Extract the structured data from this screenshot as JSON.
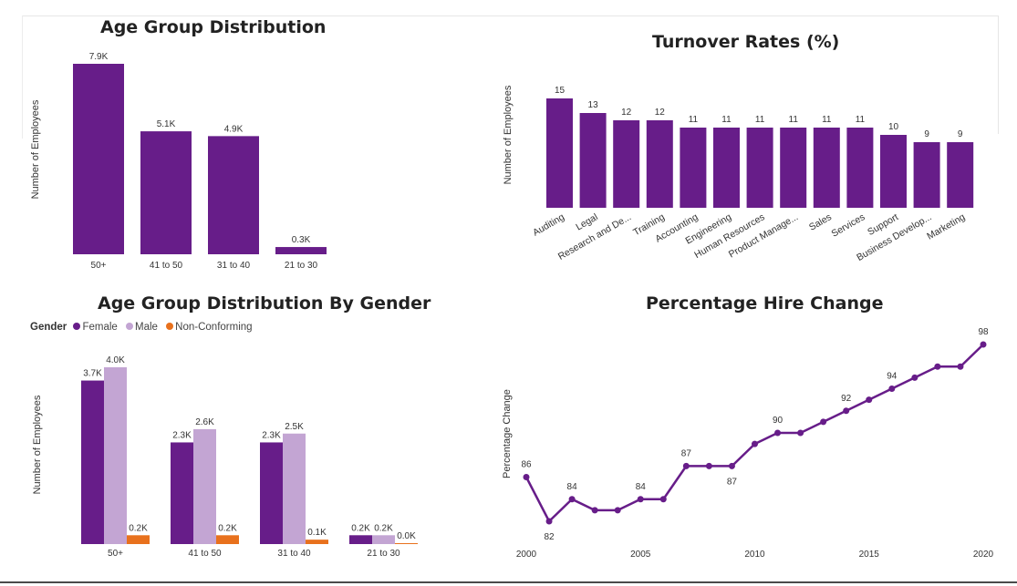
{
  "colors": {
    "primary": "#671d89",
    "female": "#671d89",
    "male": "#c3a5d3",
    "nonconforming": "#e8711d",
    "text": "#333333"
  },
  "chart_data": [
    {
      "id": "age",
      "type": "bar",
      "title": "Age Group Distribution",
      "ylabel": "Number of Employees",
      "categories": [
        "50+",
        "41 to 50",
        "31 to 40",
        "21 to 30"
      ],
      "values": [
        7.9,
        5.1,
        4.9,
        0.3
      ],
      "labels": [
        "7.9K",
        "5.1K",
        "4.9K",
        "0.3K"
      ],
      "ylim": [
        0,
        7.9
      ],
      "unit": "thousands"
    },
    {
      "id": "turnover",
      "type": "bar",
      "title": "Turnover Rates (%)",
      "ylabel": "Number of Employees",
      "categories": [
        "Auditing",
        "Legal",
        "Research and De...",
        "Training",
        "Accounting",
        "Engineering",
        "Human Resources",
        "Product Manage...",
        "Sales",
        "Services",
        "Support",
        "Business Develop...",
        "Marketing"
      ],
      "values": [
        15,
        13,
        12,
        12,
        11,
        11,
        11,
        11,
        11,
        11,
        10,
        9,
        9
      ],
      "labels": [
        "15",
        "13",
        "12",
        "12",
        "11",
        "11",
        "11",
        "11",
        "11",
        "11",
        "10",
        "9",
        "9"
      ],
      "ylim": [
        0,
        15
      ]
    },
    {
      "id": "gender",
      "type": "bar",
      "title": "Age Group Distribution By Gender",
      "ylabel": "Number of Employees",
      "legend_title": "Gender",
      "categories": [
        "50+",
        "41 to 50",
        "31 to 40",
        "21 to 30"
      ],
      "series": [
        {
          "name": "Female",
          "values": [
            3.7,
            2.3,
            2.3,
            0.2
          ],
          "labels": [
            "3.7K",
            "2.3K",
            "2.3K",
            "0.2K"
          ]
        },
        {
          "name": "Male",
          "values": [
            4.0,
            2.6,
            2.5,
            0.2
          ],
          "labels": [
            "4.0K",
            "2.6K",
            "2.5K",
            "0.2K"
          ]
        },
        {
          "name": "Non-Conforming",
          "values": [
            0.2,
            0.2,
            0.1,
            0.0
          ],
          "labels": [
            "0.2K",
            "0.2K",
            "0.1K",
            "0.0K"
          ]
        }
      ],
      "ylim": [
        0,
        4.0
      ],
      "unit": "thousands"
    },
    {
      "id": "hire",
      "type": "line",
      "title": "Percentage Hire Change",
      "ylabel": "Percentage Change",
      "x": [
        2000,
        2001,
        2002,
        2003,
        2004,
        2005,
        2006,
        2007,
        2008,
        2009,
        2010,
        2011,
        2012,
        2013,
        2014,
        2015,
        2016,
        2017,
        2018,
        2019,
        2020
      ],
      "values": [
        86,
        82,
        84,
        83,
        83,
        84,
        84,
        87,
        87,
        87,
        89,
        90,
        90,
        91,
        92,
        93,
        94,
        95,
        96,
        96,
        98
      ],
      "point_labels": [
        {
          "index": 0,
          "text": "86",
          "pos": "above"
        },
        {
          "index": 1,
          "text": "82",
          "pos": "below"
        },
        {
          "index": 2,
          "text": "84",
          "pos": "above"
        },
        {
          "index": 5,
          "text": "84",
          "pos": "above"
        },
        {
          "index": 7,
          "text": "87",
          "pos": "above"
        },
        {
          "index": 9,
          "text": "87",
          "pos": "below"
        },
        {
          "index": 11,
          "text": "90",
          "pos": "above"
        },
        {
          "index": 14,
          "text": "92",
          "pos": "above"
        },
        {
          "index": 16,
          "text": "94",
          "pos": "above"
        },
        {
          "index": 20,
          "text": "98",
          "pos": "above"
        }
      ],
      "xticks": [
        "2000",
        "2005",
        "2010",
        "2015",
        "2020"
      ],
      "xlim": [
        2000,
        2020
      ],
      "ylim": [
        80,
        98
      ]
    }
  ]
}
